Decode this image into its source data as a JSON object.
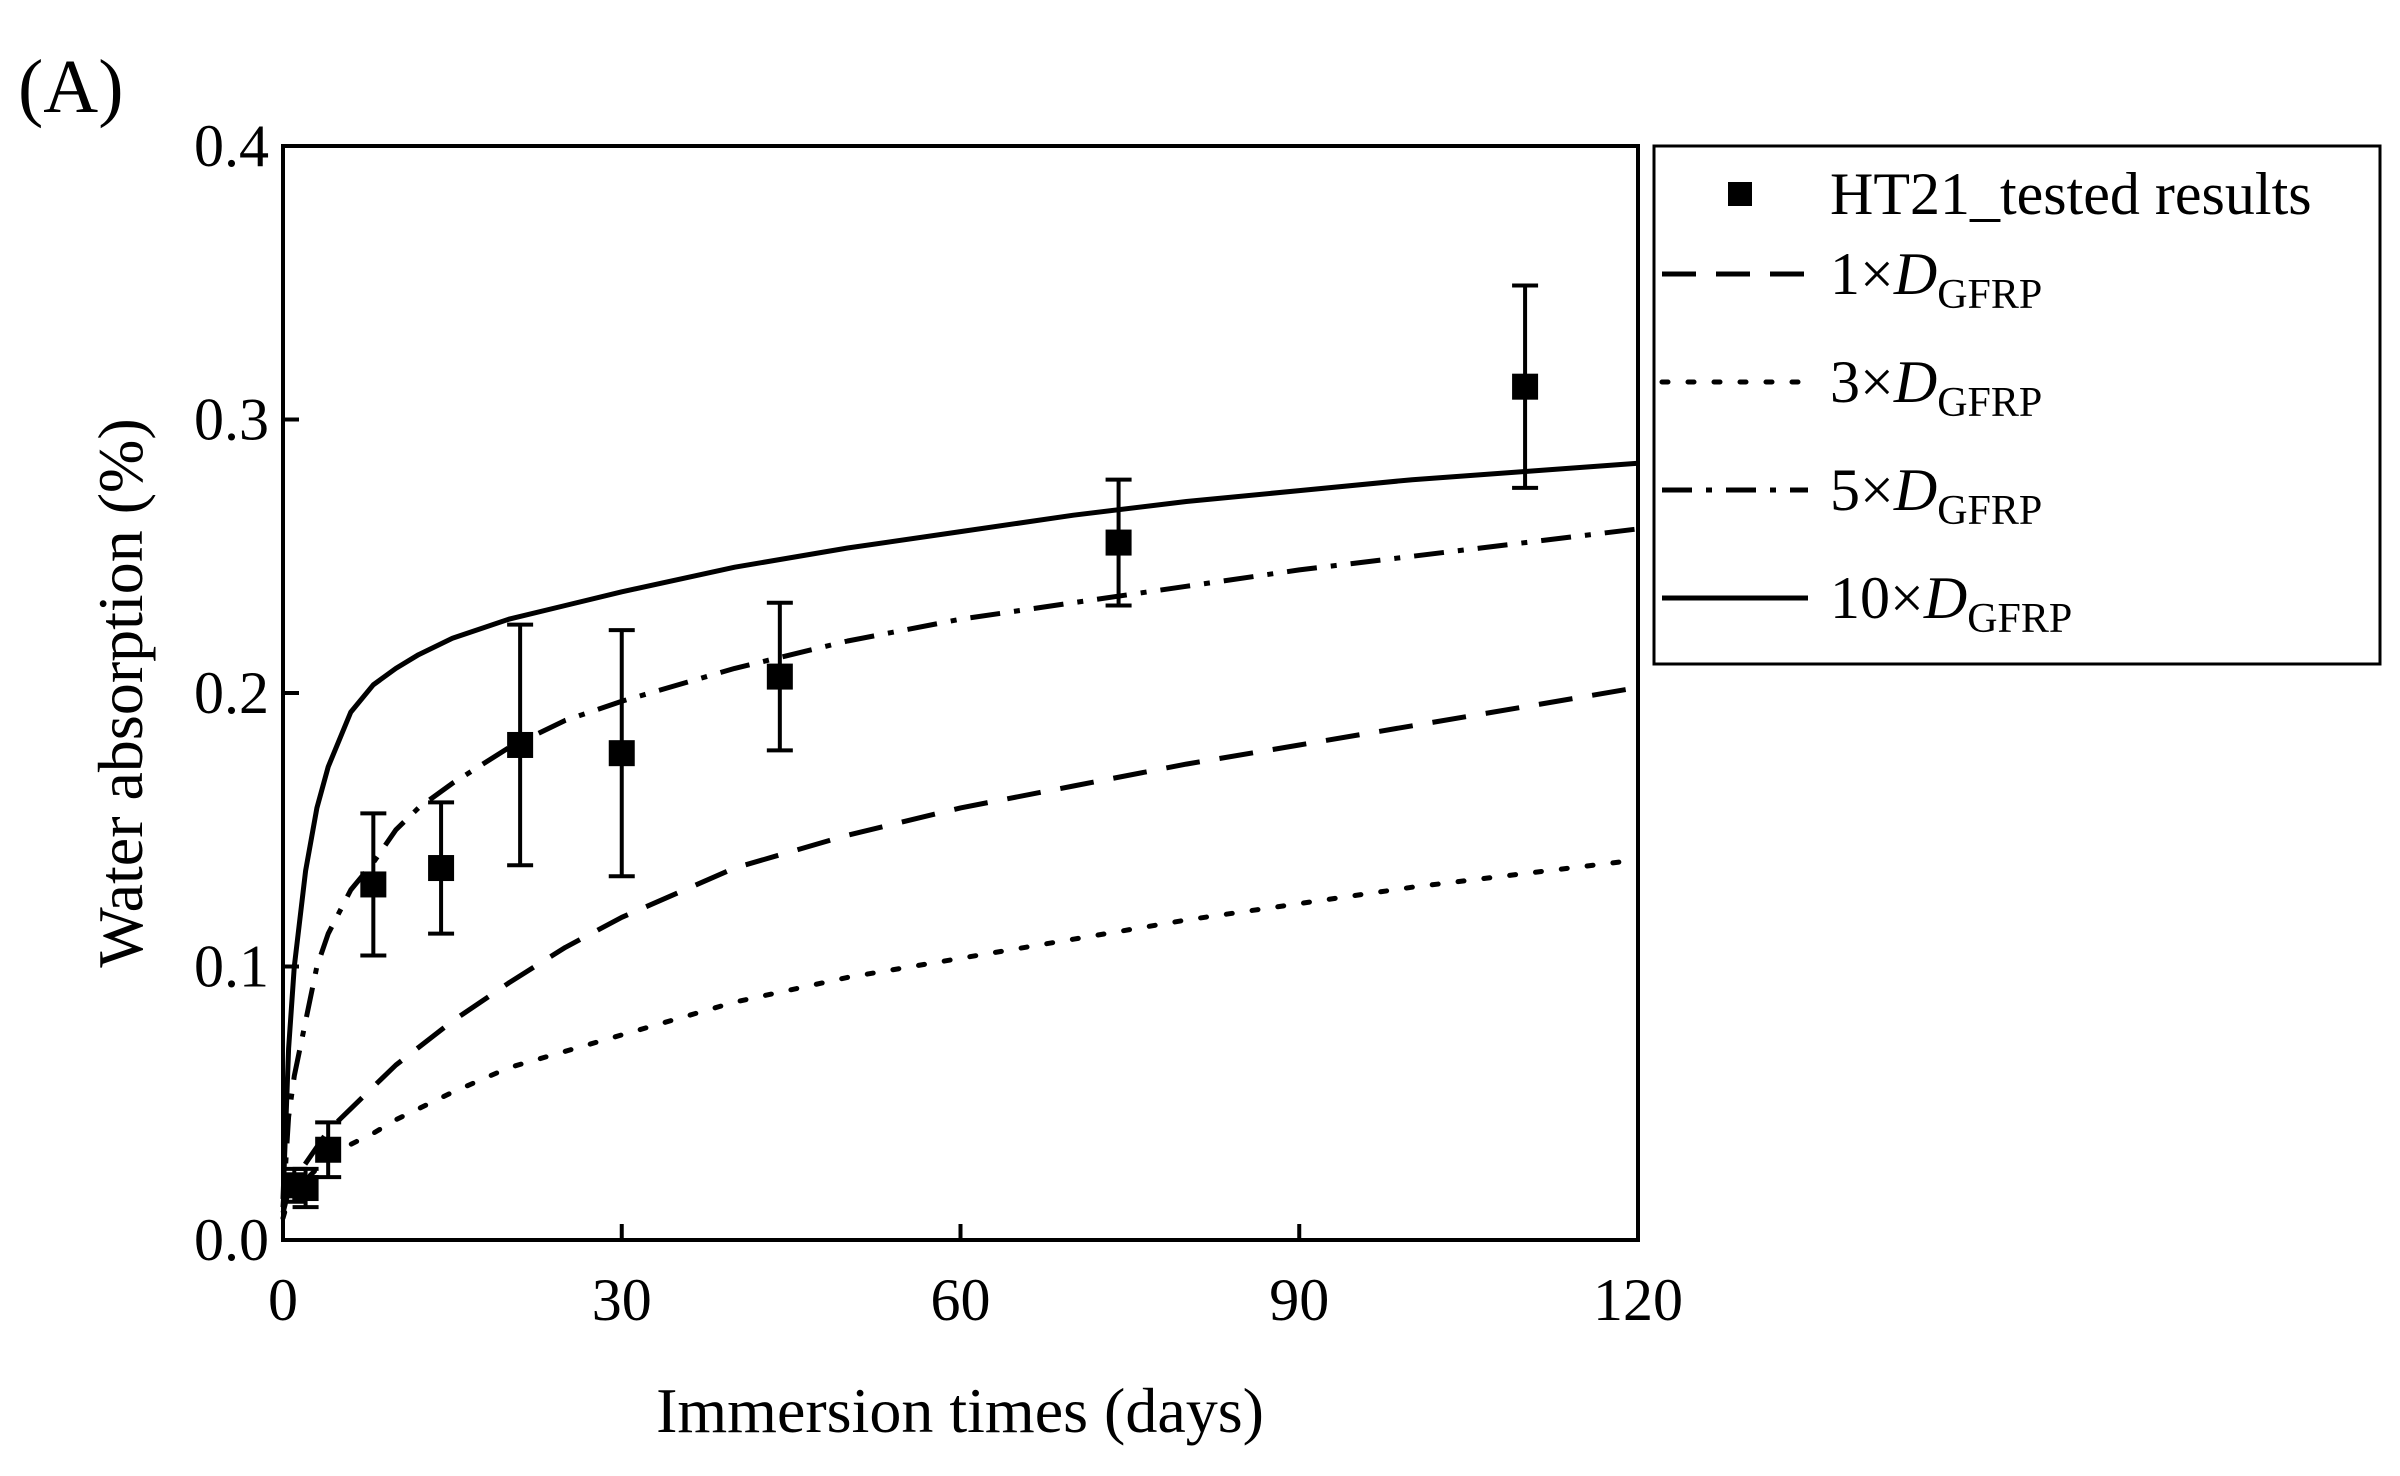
{
  "panel_label": "(A)",
  "chart_data": {
    "type": "scatter",
    "title": "",
    "xlabel": "Immersion times (days)",
    "ylabel": "Water absorption (%)",
    "xlim": [
      0,
      120
    ],
    "ylim": [
      0,
      0.4
    ],
    "xticks": [
      0,
      30,
      60,
      90,
      120
    ],
    "xtick_labels": [
      "0",
      "30",
      "60",
      "90",
      "120"
    ],
    "yticks": [
      0.0,
      0.1,
      0.2,
      0.3,
      0.4
    ],
    "ytick_labels": [
      "0.0",
      "0.1",
      "0.2",
      "0.3",
      "0.4"
    ],
    "legend_position": "outside-right-top",
    "tested": {
      "name": "HT21_tested results",
      "marker": "filled-square",
      "points": [
        {
          "x": 1,
          "y": 0.02,
          "err": 0.006
        },
        {
          "x": 2,
          "y": 0.019,
          "err": 0.007
        },
        {
          "x": 4,
          "y": 0.033,
          "err": 0.01
        },
        {
          "x": 8,
          "y": 0.13,
          "err": 0.026
        },
        {
          "x": 14,
          "y": 0.136,
          "err": 0.024
        },
        {
          "x": 21,
          "y": 0.181,
          "err": 0.044
        },
        {
          "x": 30,
          "y": 0.178,
          "err": 0.045
        },
        {
          "x": 44,
          "y": 0.206,
          "err": 0.027
        },
        {
          "x": 74,
          "y": 0.255,
          "err": 0.023
        },
        {
          "x": 110,
          "y": 0.312,
          "err": 0.037
        }
      ]
    },
    "series": [
      {
        "name_prefix": "1×",
        "name_symbol": "D",
        "name_sub": "GFRP",
        "style": "dashed",
        "x": [
          0,
          0.5,
          1,
          2,
          3,
          4,
          6,
          8,
          10,
          15,
          20,
          25,
          30,
          40,
          50,
          60,
          70,
          80,
          90,
          100,
          110,
          120
        ],
        "y": [
          0.01,
          0.018,
          0.022,
          0.028,
          0.034,
          0.04,
          0.048,
          0.056,
          0.064,
          0.08,
          0.094,
          0.107,
          0.118,
          0.136,
          0.148,
          0.158,
          0.166,
          0.174,
          0.181,
          0.188,
          0.195,
          0.202
        ]
      },
      {
        "name_prefix": "3×",
        "name_symbol": "D",
        "name_sub": "GFRP",
        "style": "dotted",
        "x": [
          0,
          0.5,
          1,
          2,
          3,
          4,
          6,
          8,
          10,
          15,
          20,
          25,
          30,
          40,
          50,
          60,
          70,
          80,
          90,
          100,
          110,
          120
        ],
        "y": [
          0.008,
          0.015,
          0.018,
          0.022,
          0.026,
          0.03,
          0.035,
          0.039,
          0.044,
          0.054,
          0.063,
          0.069,
          0.075,
          0.087,
          0.096,
          0.103,
          0.11,
          0.117,
          0.123,
          0.129,
          0.134,
          0.139
        ]
      },
      {
        "name_prefix": "5×",
        "name_symbol": "D",
        "name_sub": "GFRP",
        "style": "dashdot",
        "x": [
          0,
          0.5,
          1,
          2,
          3,
          4,
          6,
          8,
          10,
          12,
          15,
          20,
          25,
          30,
          40,
          50,
          60,
          70,
          80,
          90,
          100,
          110,
          120
        ],
        "y": [
          0.012,
          0.045,
          0.06,
          0.08,
          0.1,
          0.112,
          0.128,
          0.138,
          0.15,
          0.158,
          0.167,
          0.18,
          0.19,
          0.197,
          0.209,
          0.219,
          0.227,
          0.233,
          0.239,
          0.245,
          0.25,
          0.255,
          0.26
        ]
      },
      {
        "name_prefix": "10×",
        "name_symbol": "D",
        "name_sub": "GFRP",
        "style": "solid",
        "x": [
          0,
          0.5,
          1,
          2,
          3,
          4,
          6,
          8,
          10,
          12,
          15,
          20,
          25,
          30,
          40,
          50,
          60,
          70,
          80,
          90,
          100,
          110,
          120
        ],
        "y": [
          0.015,
          0.07,
          0.1,
          0.135,
          0.158,
          0.173,
          0.193,
          0.203,
          0.209,
          0.214,
          0.22,
          0.227,
          0.232,
          0.237,
          0.246,
          0.253,
          0.259,
          0.265,
          0.27,
          0.274,
          0.278,
          0.281,
          0.284
        ]
      }
    ]
  }
}
